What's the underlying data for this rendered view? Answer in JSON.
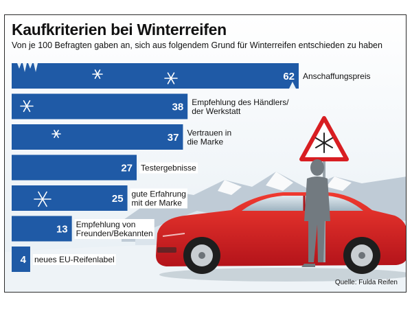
{
  "title": "Kaufkriterien bei Winterreifen",
  "subtitle": "Von je 100 Befragten gaben an, sich aus folgendem Grund für Winterreifen entschieden zu haben",
  "source": "Quelle: Fulda Reifen",
  "colors": {
    "bar": "#1f5aa6",
    "car": "#d81e22",
    "sign_border": "#d81e22"
  },
  "chart_data": {
    "type": "bar",
    "orientation": "horizontal",
    "categories": [
      "Anschaffungspreis",
      "Empfehlung des Händlers/ der Werkstatt",
      "Vertrauen in die Marke",
      "Testergebnisse",
      "gute Erfahrung mit der Marke",
      "Empfehlung von Freunden/Bekannten",
      "neues EU-Reifenlabel"
    ],
    "label_lines": [
      [
        "Anschaffungspreis"
      ],
      [
        "Empfehlung des Händlers/",
        "der Werkstatt"
      ],
      [
        "Vertrauen in",
        "die Marke"
      ],
      [
        "Testergebnisse"
      ],
      [
        "gute Erfahrung",
        "mit der Marke"
      ],
      [
        "Empfehlung von",
        "Freunden/Bekannten"
      ],
      [
        "neues EU-Reifenlabel"
      ]
    ],
    "values": [
      62,
      38,
      37,
      27,
      25,
      13,
      4
    ],
    "xlim": [
      0,
      62
    ],
    "grid": false,
    "legend": "none"
  }
}
